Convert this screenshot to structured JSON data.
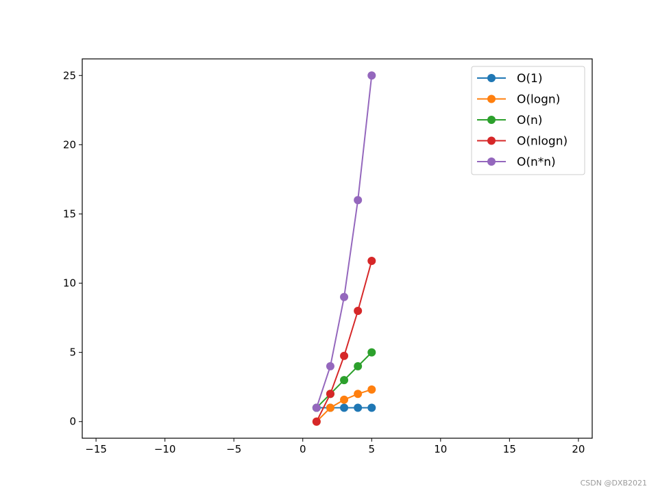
{
  "chart_data": {
    "type": "line",
    "title": "",
    "xlabel": "",
    "ylabel": "",
    "xlim": [
      -16,
      21
    ],
    "ylim": [
      -1.2,
      26.2
    ],
    "xticks": [
      -15,
      -10,
      -5,
      0,
      5,
      10,
      15,
      20
    ],
    "yticks": [
      0,
      5,
      10,
      15,
      20,
      25
    ],
    "x_tick_labels": [
      "−15",
      "−10",
      "−5",
      "0",
      "5",
      "10",
      "15",
      "20"
    ],
    "y_tick_labels": [
      "0",
      "5",
      "10",
      "15",
      "20",
      "25"
    ],
    "grid": false,
    "legend_position": "top-right",
    "markers": true,
    "x": [
      1,
      2,
      3,
      4,
      5
    ],
    "series": [
      {
        "name": "O(1)",
        "color": "#1f77b4",
        "values": [
          1,
          1,
          1,
          1,
          1
        ]
      },
      {
        "name": "O(logn)",
        "color": "#ff7f0e",
        "values": [
          0,
          1,
          1.58,
          2,
          2.32
        ]
      },
      {
        "name": "O(n)",
        "color": "#2ca02c",
        "values": [
          1,
          2,
          3,
          4,
          5
        ]
      },
      {
        "name": "O(nlogn)",
        "color": "#d62728",
        "values": [
          0,
          2,
          4.75,
          8,
          11.61
        ]
      },
      {
        "name": "O(n*n)",
        "color": "#9467bd",
        "values": [
          1,
          4,
          9,
          16,
          25
        ]
      }
    ]
  },
  "watermark": "CSDN @DXB2021"
}
